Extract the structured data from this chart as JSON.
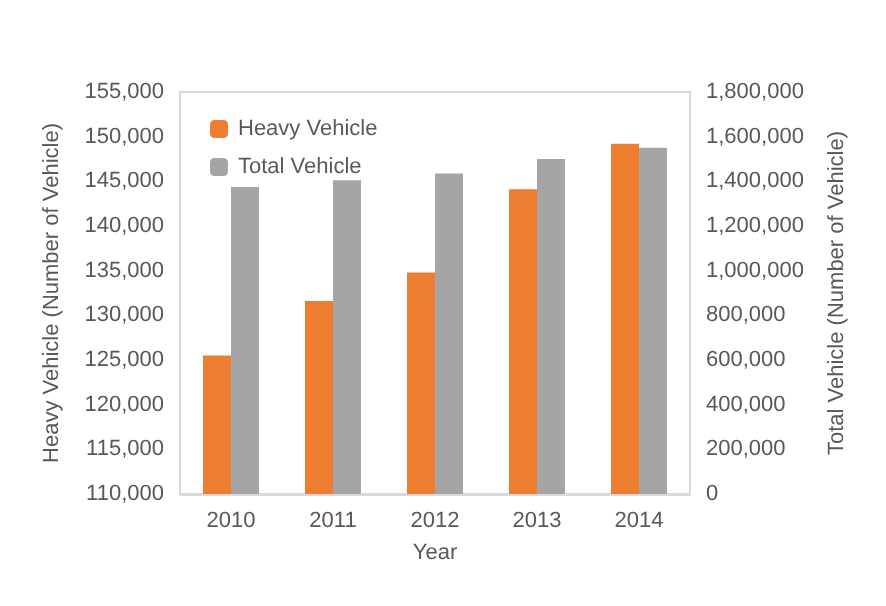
{
  "chart_data": {
    "type": "bar",
    "xlabel": "Year",
    "ylabel": "Heavy Vehicle (Number of Vehicle)",
    "y2label": "Total Vehicle (Number of Vehicle)",
    "categories": [
      "2010",
      "2011",
      "2012",
      "2013",
      "2014"
    ],
    "series": [
      {
        "name": "Heavy Vehicle",
        "color": "#ed7d31",
        "values": [
          125500,
          131600,
          134800,
          144100,
          149200
        ]
      },
      {
        "name": "Total Vehicle",
        "color": "#a5a5a5",
        "axis": "y2",
        "values": [
          1375000,
          1405000,
          1435000,
          1500000,
          1550000
        ]
      }
    ],
    "ylim": [
      110000,
      155000
    ],
    "yticks": [
      {
        "value": 110000,
        "label": "110,000"
      },
      {
        "value": 115000,
        "label": "115,000"
      },
      {
        "value": 120000,
        "label": "120,000"
      },
      {
        "value": 125000,
        "label": "125,000"
      },
      {
        "value": 130000,
        "label": "130,000"
      },
      {
        "value": 135000,
        "label": "135,000"
      },
      {
        "value": 140000,
        "label": "140,000"
      },
      {
        "value": 145000,
        "label": "145,000"
      },
      {
        "value": 150000,
        "label": "150,000"
      },
      {
        "value": 155000,
        "label": "155,000"
      }
    ],
    "y2lim": [
      0,
      1800000
    ],
    "y2ticks": [
      0,
      {
        "value": 200000,
        "label": "200,000"
      },
      {
        "value": 400000,
        "label": "400,000"
      },
      {
        "value": 600000,
        "label": "600,000"
      },
      {
        "value": 800000,
        "label": "800,000"
      },
      {
        "value": 1000000,
        "label": "1,000,000"
      },
      {
        "value": 1200000,
        "label": "1,200,000"
      },
      {
        "value": 1400000,
        "label": "1,400,000"
      },
      {
        "value": 1600000,
        "label": "1,600,000"
      },
      {
        "value": 1800000,
        "label": "1,800,000"
      }
    ],
    "grid": false,
    "legend": "top left"
  }
}
